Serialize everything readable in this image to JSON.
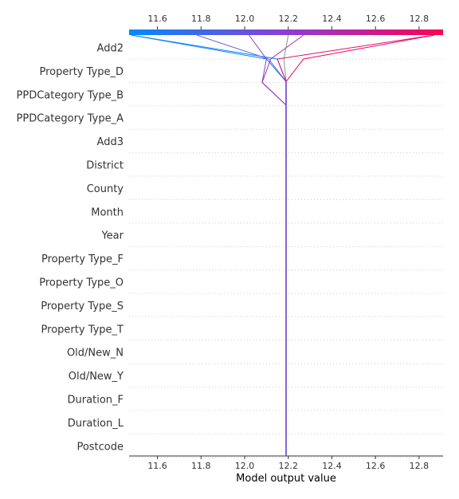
{
  "chart_data": {
    "type": "line",
    "subtype": "shap-decision-plot",
    "title": "",
    "xlabel": "Model output value",
    "ylabel": "",
    "xlim": [
      11.47,
      12.91
    ],
    "x_ticks": [
      11.6,
      11.8,
      12.0,
      12.2,
      12.4,
      12.6,
      12.8
    ],
    "tick_labels_top": [
      "11.6",
      "11.8",
      "12.0",
      "12.2",
      "12.4",
      "12.6",
      "12.8"
    ],
    "tick_labels_bottom": [
      "11.6",
      "11.8",
      "12.0",
      "12.2",
      "12.4",
      "12.6",
      "12.8"
    ],
    "base_value": 12.19,
    "grid": "horizontal-dotted",
    "colormap": {
      "low": "#008bfb",
      "mid": "#8a3fd6",
      "high": "#ff0052"
    },
    "features": [
      "Add2",
      "Property Type_D",
      "PPDCategory Type_B",
      "PPDCategory Type_A",
      "Add3",
      "District",
      "County",
      "Month",
      "Year",
      "Property Type_F",
      "Property Type_O",
      "Property Type_S",
      "Property Type_T",
      "Old/New_N",
      "Old/New_Y",
      "Duration_F",
      "Duration_L",
      "Postcode"
    ],
    "series": [
      {
        "color": "#008bfb",
        "values": [
          11.48,
          12.15
        ]
      },
      {
        "color": "#1a82f5",
        "values": [
          11.48,
          12.1
        ]
      },
      {
        "color": "#5a60e0",
        "values": [
          11.78,
          12.11
        ]
      },
      {
        "color": "#8a3fd6",
        "values": [
          12.02,
          12.1,
          12.08
        ]
      },
      {
        "color": "#a030c0",
        "values": [
          12.27,
          12.12,
          12.08
        ]
      },
      {
        "color": "#909090",
        "values": [
          12.2,
          12.18
        ]
      },
      {
        "color": "#e0106a",
        "values": [
          12.87,
          12.15
        ]
      },
      {
        "color": "#f00060",
        "values": [
          12.87,
          12.27
        ]
      }
    ]
  }
}
